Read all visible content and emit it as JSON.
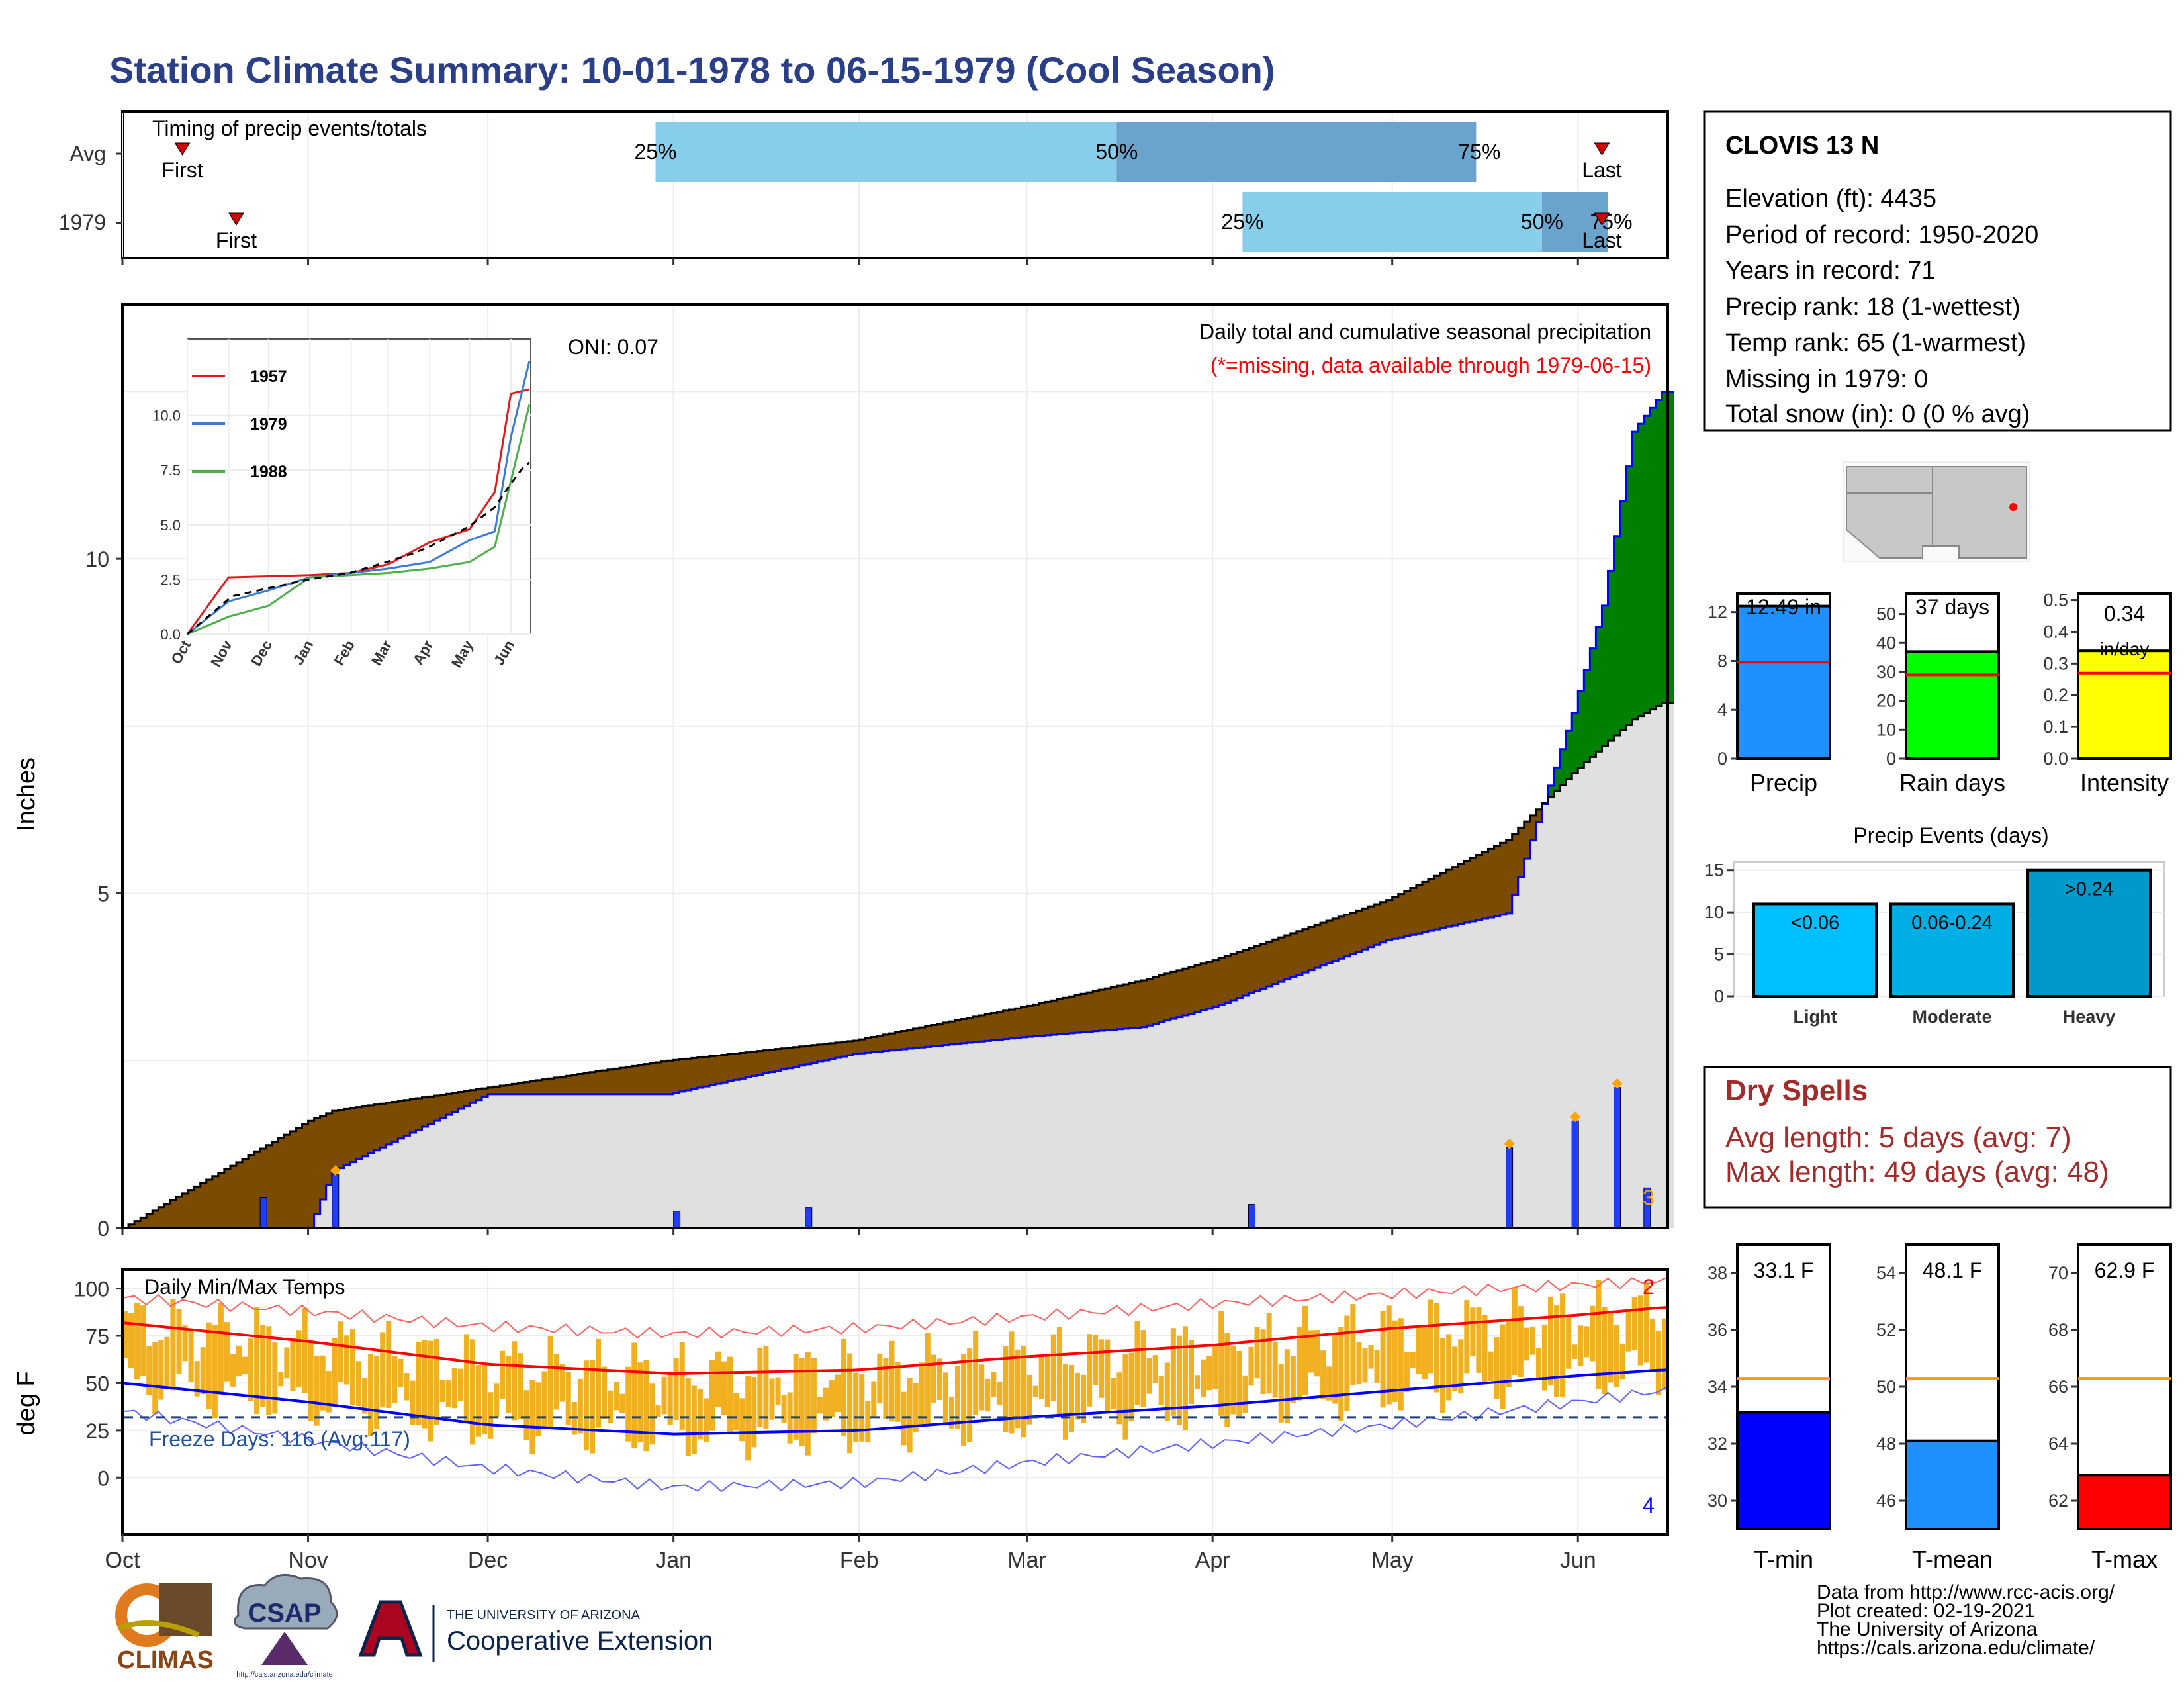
{
  "title": "Station Climate Summary: 10-01-1978 to 06-15-1979 (Cool Season)",
  "colors": {
    "title": "#2a3f87",
    "cum_fill": "#e0e0e0",
    "below_avg": "#7a4b00",
    "above_avg": "#008000",
    "precip_bar": "#1f3cff",
    "timing_light": "#87ceeb",
    "timing_dark": "#6aa3cc",
    "temp_bar": "#f0b020",
    "tmax_line": "#ff0000",
    "tmin_line": "#0000ff",
    "rank_line": "#ff0000",
    "gauge_line": "#ff9900"
  },
  "timing": {
    "label": "Timing of precip events/totals",
    "row_labels": [
      "Avg",
      "1979"
    ],
    "first_label": "First",
    "last_label": "Last",
    "avg_pcts": [
      "25%",
      "50%",
      "75%"
    ],
    "yr_pcts": [
      "25%",
      "50%",
      "75%"
    ],
    "avg_days": {
      "first": 10,
      "p25": 89,
      "p50": 166,
      "p75": 226,
      "last": 247
    },
    "yr_days": {
      "first": 19,
      "p25": 187,
      "p50": 237,
      "p75": 248,
      "last": 247
    }
  },
  "precip": {
    "y_label": "Inches",
    "oni": "ONI: 0.07",
    "subtitle": "Daily total and cumulative seasonal precipitation",
    "missing_note": "(*=missing, data available through 1979-06-15)",
    "corner_count": "3",
    "y_ticks": [
      "0",
      "5",
      "10"
    ]
  },
  "x_months": [
    "Oct",
    "Nov",
    "Dec",
    "Jan",
    "Feb",
    "Mar",
    "Apr",
    "May",
    "Jun"
  ],
  "inset": {
    "legend": [
      "1957",
      "1979",
      "1988"
    ],
    "legend_colors": [
      "#e31a1c",
      "#3a7bd5",
      "#4daf4a"
    ],
    "y_ticks": [
      "0.0",
      "2.5",
      "5.0",
      "7.5",
      "10.0"
    ],
    "x_ticks": [
      "Oct",
      "Nov",
      "Dec",
      "Jan",
      "Feb",
      "Mar",
      "Apr",
      "May",
      "Jun"
    ]
  },
  "temps": {
    "label": "Daily Min/Max Temps",
    "y_label": "deg F",
    "freeze": "Freeze Days: 116 (Avg:117)",
    "y_ticks": [
      "0",
      "25",
      "50",
      "75",
      "100"
    ],
    "count_max": "2",
    "count_min": "4"
  },
  "station": {
    "name": "CLOVIS 13 N",
    "lines": [
      "Elevation (ft): 4435",
      "Period of record: 1950-2020",
      "Years in record: 71",
      "Precip rank: 18 (1-wettest)",
      "Temp rank: 65 (1-warmest)",
      "Missing in 1979: 0",
      "Total snow (in): 0 (0 % avg)"
    ]
  },
  "gauges_precip": [
    {
      "value_label": "12.49 in",
      "name": "Precip",
      "value": 12.49,
      "avg": 7.9,
      "ymax": 13.5,
      "ticks": [
        "0",
        "4",
        "8",
        "12"
      ],
      "color": "#1e90ff"
    },
    {
      "value_label": "37 days",
      "name": "Rain days",
      "value": 37,
      "avg": 29,
      "ymax": 57,
      "ticks": [
        "0",
        "10",
        "20",
        "30",
        "40",
        "50"
      ],
      "color": "#00ff00"
    },
    {
      "value_label": "0.34 in/day",
      "name": "Intensity",
      "value": 0.34,
      "avg": 0.27,
      "ymax": 0.52,
      "ticks": [
        "0.0",
        "0.1",
        "0.2",
        "0.3",
        "0.4",
        "0.5"
      ],
      "color": "#ffff00"
    }
  ],
  "precip_events": {
    "title": "Precip Events (days)",
    "y_ticks": [
      "0",
      "5",
      "10",
      "15"
    ],
    "bars": [
      {
        "label": "<0.06",
        "name": "Light",
        "value": 11,
        "color": "#00bfff"
      },
      {
        "label": "0.06-0.24",
        "name": "Moderate",
        "value": 11,
        "color": "#00aee6"
      },
      {
        "label": ">0.24",
        "name": "Heavy",
        "value": 15,
        "color": "#0099cc"
      }
    ]
  },
  "dry_spells": {
    "title": "Dry Spells",
    "avg": "Avg length: 5 days (avg: 7)",
    "max": "Max length: 49 days (avg: 48)"
  },
  "gauges_temp": [
    {
      "value_label": "33.1 F",
      "name": "T-min",
      "value": 33.1,
      "avg": 34.3,
      "ymin": 29,
      "ymax": 39,
      "ticks": [
        "30",
        "32",
        "34",
        "36",
        "38"
      ],
      "color": "#0000ff"
    },
    {
      "value_label": "48.1 F",
      "name": "T-mean",
      "value": 48.1,
      "avg": 50.3,
      "ymin": 45,
      "ymax": 55,
      "ticks": [
        "46",
        "48",
        "50",
        "52",
        "54"
      ],
      "color": "#1e90ff"
    },
    {
      "value_label": "62.9 F",
      "name": "T-max",
      "value": 62.9,
      "avg": 66.3,
      "ymin": 61,
      "ymax": 71,
      "ticks": [
        "62",
        "64",
        "66",
        "68",
        "70"
      ],
      "color": "#ff0000"
    }
  ],
  "footer": [
    "Data from http://www.rcc-acis.org/",
    "Plot created: 02-19-2021",
    "The University of Arizona",
    "https://cals.arizona.edu/climate/"
  ],
  "logos": {
    "climas": "CLIMAS",
    "csap": "CSAP",
    "csap_url": "http://cals.arizona.edu/climate",
    "ua_top": "THE UNIVERSITY OF ARIZONA",
    "ua_bottom": "Cooperative Extension"
  },
  "chart_data": [
    {
      "type": "line",
      "title": "Daily total and cumulative seasonal precipitation",
      "ylabel": "Inches",
      "ylim": [
        0,
        13.8
      ],
      "x": [
        "1978-10-01",
        "1978-11-01",
        "1978-11-05",
        "1978-12-01",
        "1978-12-31",
        "1979-01-31",
        "1979-02-28",
        "1979-03-20",
        "1979-04-01",
        "1979-04-30",
        "1979-05-20",
        "1979-05-31",
        "1979-06-05",
        "1979-06-10",
        "1979-06-15"
      ],
      "series": [
        {
          "name": "1979",
          "values": [
            0.0,
            0.0,
            0.85,
            2.0,
            2.0,
            2.6,
            2.85,
            3.0,
            3.3,
            4.3,
            4.7,
            7.7,
            9.3,
            11.9,
            12.49
          ]
        }
      ],
      "avg_values": [
        0.0,
        1.6,
        1.75,
        2.1,
        2.5,
        2.8,
        3.3,
        3.7,
        4.0,
        4.9,
        5.8,
        6.8,
        7.2,
        7.6,
        7.85
      ],
      "daily_precip": [
        {
          "date": "1978-10-24",
          "value": 0.45
        },
        {
          "date": "1978-11-05",
          "value": 0.8
        },
        {
          "date": "1979-01-01",
          "value": 0.25
        },
        {
          "date": "1979-01-23",
          "value": 0.3
        },
        {
          "date": "1979-04-07",
          "value": 0.35
        },
        {
          "date": "1979-05-20",
          "value": 1.2
        },
        {
          "date": "1979-05-31",
          "value": 1.6
        },
        {
          "date": "1979-06-07",
          "value": 2.1
        },
        {
          "date": "1979-06-12",
          "value": 0.6
        }
      ]
    },
    {
      "type": "line",
      "title": "",
      "ylim": [
        0,
        13.5
      ],
      "x": [
        "1978-10-01",
        "1978-11-01",
        "1978-12-01",
        "1979-01-01",
        "1979-02-01",
        "1979-03-01",
        "1979-04-01",
        "1979-05-01",
        "1979-05-20",
        "1979-06-01",
        "1979-06-15"
      ],
      "series": [
        {
          "name": "1957",
          "values": [
            0.0,
            2.6,
            2.65,
            2.7,
            2.8,
            3.2,
            4.2,
            4.8,
            6.5,
            11.0,
            11.2
          ]
        },
        {
          "name": "1979",
          "values": [
            0.0,
            1.5,
            2.0,
            2.6,
            2.8,
            3.0,
            3.3,
            4.3,
            4.7,
            9.0,
            12.49
          ]
        },
        {
          "name": "1988",
          "values": [
            0.0,
            0.8,
            1.3,
            2.6,
            2.7,
            2.8,
            3.0,
            3.3,
            4.0,
            7.0,
            10.5
          ]
        }
      ]
    },
    {
      "type": "line",
      "title": "Daily Min/Max Temps",
      "ylabel": "deg F",
      "ylim": [
        -30,
        110
      ],
      "x": [
        "1978-10-01",
        "1978-11-01",
        "1978-12-01",
        "1979-01-01",
        "1979-02-01",
        "1979-03-01",
        "1979-04-01",
        "1979-05-01",
        "1979-06-01",
        "1979-06-15"
      ],
      "series": [
        {
          "name": "avg max",
          "values": [
            82,
            72,
            60,
            55,
            57,
            64,
            70,
            79,
            86,
            90
          ]
        },
        {
          "name": "avg min",
          "values": [
            50,
            40,
            28,
            23,
            25,
            32,
            38,
            46,
            54,
            57
          ]
        },
        {
          "name": "record max",
          "values": [
            95,
            88,
            80,
            76,
            79,
            85,
            92,
            97,
            102,
            104
          ]
        },
        {
          "name": "record min",
          "values": [
            35,
            20,
            5,
            -5,
            -3,
            8,
            18,
            28,
            40,
            46
          ]
        }
      ],
      "freeze_line": 32
    },
    {
      "type": "bar",
      "title": "Precip Events (days)",
      "categories": [
        "Light",
        "Moderate",
        "Heavy"
      ],
      "values": [
        11,
        11,
        15
      ],
      "ylim": [
        0,
        16
      ]
    }
  ]
}
